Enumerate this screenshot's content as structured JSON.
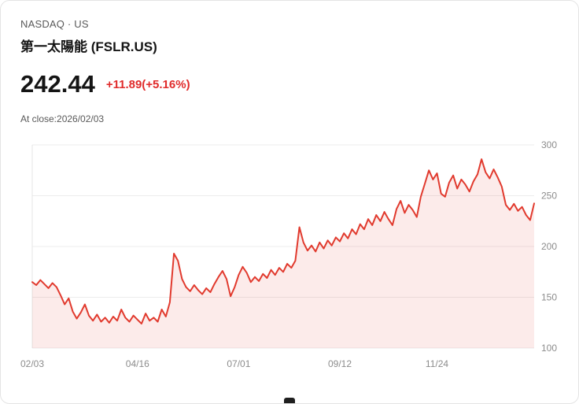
{
  "header": {
    "exchange": "NASDAQ · US",
    "title": "第一太陽能 (FSLR.US)",
    "price": "242.44",
    "change": "+11.89(+5.16%)",
    "as_of": "At close:2026/02/03"
  },
  "colors": {
    "price_text": "#141414",
    "change_text": "#e02b2b",
    "muted_text": "#595959"
  },
  "chart_data": {
    "type": "line",
    "title": "",
    "xlabel": "",
    "ylabel": "",
    "ylim": [
      100,
      300
    ],
    "yticks": [
      100,
      150,
      200,
      250,
      300
    ],
    "ytick_side": "right",
    "grid": true,
    "legend": false,
    "xticks": [
      {
        "label": "02/03",
        "index": 0
      },
      {
        "label": "04/16",
        "index": 26
      },
      {
        "label": "07/01",
        "index": 51
      },
      {
        "label": "09/12",
        "index": 76
      },
      {
        "label": "11/24",
        "index": 100
      }
    ],
    "values": [
      165,
      162,
      167,
      163,
      159,
      164,
      160,
      152,
      143,
      149,
      136,
      129,
      135,
      143,
      132,
      127,
      133,
      126,
      130,
      125,
      131,
      127,
      138,
      130,
      126,
      132,
      128,
      124,
      134,
      127,
      130,
      126,
      138,
      131,
      145,
      193,
      186,
      168,
      160,
      156,
      162,
      157,
      153,
      159,
      155,
      163,
      170,
      176,
      168,
      151,
      160,
      172,
      180,
      174,
      165,
      170,
      166,
      173,
      169,
      177,
      172,
      179,
      175,
      183,
      179,
      186,
      219,
      204,
      196,
      201,
      195,
      204,
      198,
      206,
      201,
      209,
      205,
      213,
      208,
      217,
      212,
      222,
      217,
      227,
      221,
      231,
      225,
      234,
      227,
      221,
      237,
      245,
      233,
      241,
      236,
      229,
      249,
      262,
      275,
      266,
      272,
      252,
      249,
      263,
      270,
      257,
      266,
      261,
      254,
      264,
      271,
      286,
      273,
      267,
      276,
      268,
      259,
      241,
      236,
      242,
      235,
      239,
      231,
      226,
      242.44
    ],
    "colors": {
      "line": "#e13a2e",
      "fill": "rgba(225,58,46,0.10)",
      "grid": "#ececec",
      "axis_line": "#e6e6e6",
      "axis_text": "#8c8c8c",
      "change_text": "#e02b2b"
    }
  }
}
